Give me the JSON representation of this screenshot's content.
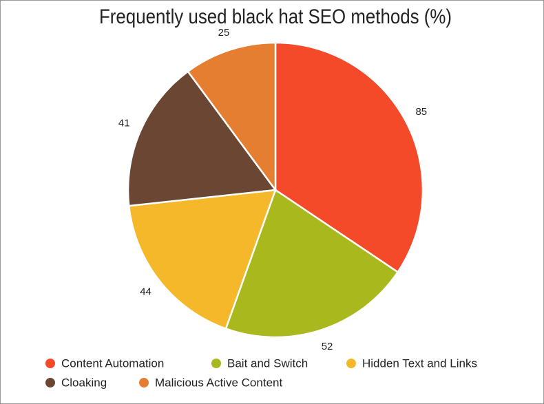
{
  "chart_data": {
    "type": "pie",
    "title": "Frequently used black hat SEO methods (%)",
    "categories": [
      "Content Automation",
      "Bait and Switch",
      "Hidden Text and Links",
      "Cloaking",
      "Malicious Active Content"
    ],
    "values": [
      85,
      52,
      44,
      41,
      25
    ],
    "colors": [
      "#f44a2a",
      "#a8b81d",
      "#f5b82a",
      "#6b4632",
      "#e57e30"
    ],
    "legend": "bottom"
  }
}
